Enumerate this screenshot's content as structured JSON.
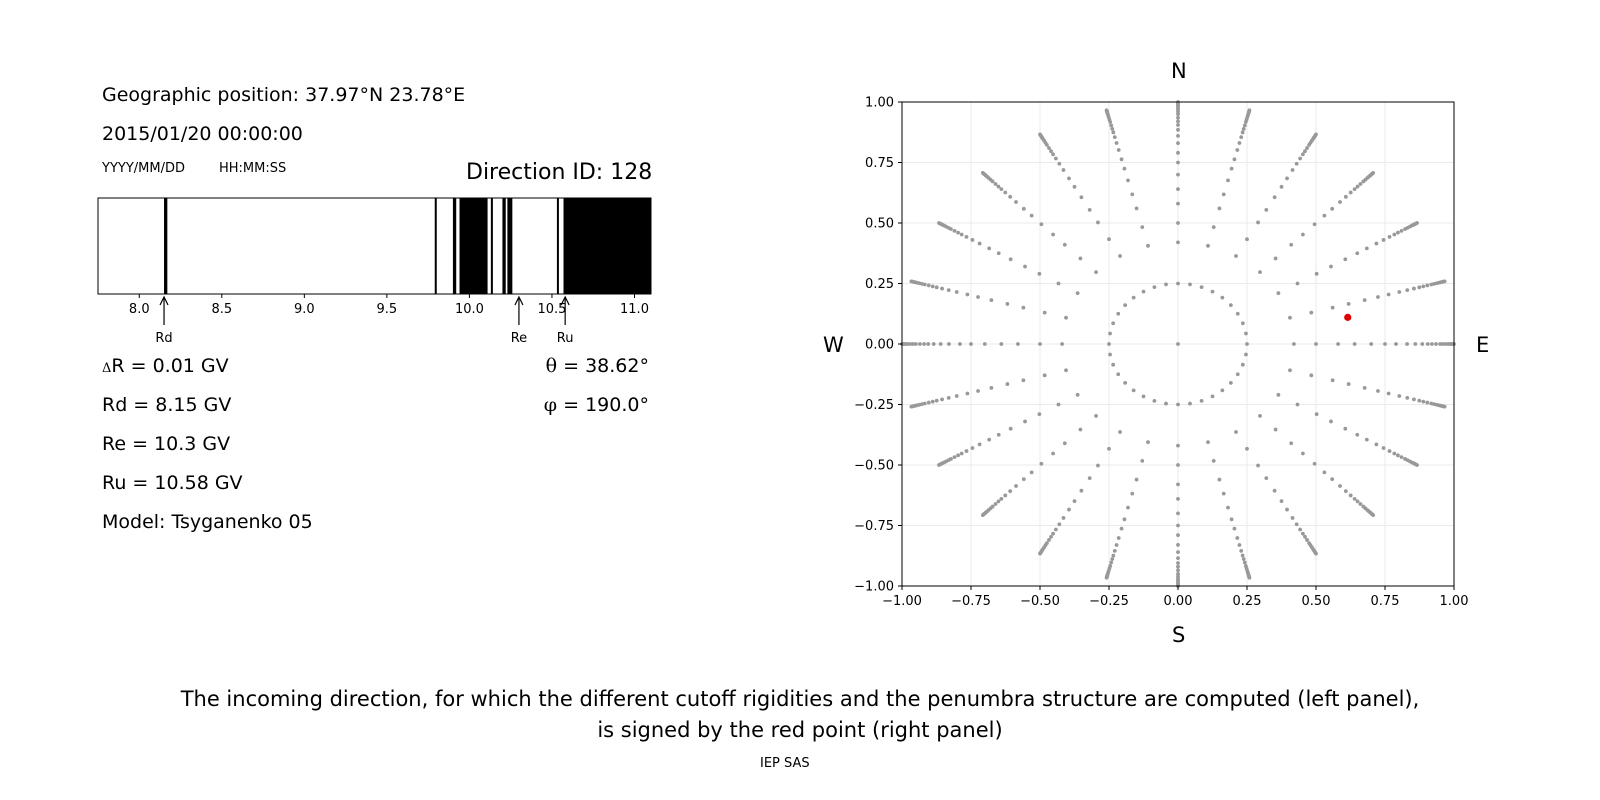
{
  "header": {
    "geo_position": "Geographic position: 37.97°N 23.78°E",
    "datetime": "2015/01/20 00:00:00",
    "date_format": "YYYY/MM/DD",
    "time_format": "HH:MM:SS",
    "direction_id": "Direction ID: 128"
  },
  "results": {
    "delta_symbol": "Δ",
    "delta_r": "R = 0.01 GV",
    "rd": "Rd = 8.15 GV",
    "re": "Re = 10.3 GV",
    "ru": "Ru = 10.58 GV",
    "model": "Model: Tsyganenko 05",
    "theta_symbol": "θ",
    "theta": " = 38.62°",
    "phi_symbol": "φ",
    "phi": " = 190.0°"
  },
  "compass": {
    "north": "N",
    "south": "S",
    "west": "W",
    "east": "E"
  },
  "caption": {
    "line1": "The incoming direction, for which the different cutoff rigidities and the penumbra structure are computed (left panel),",
    "line2": "is signed by the red point (right panel)"
  },
  "footer": "IEP SAS",
  "chart_data": [
    {
      "type": "bar",
      "name": "penumbra",
      "xlim": [
        7.75,
        11.1
      ],
      "xticks": [
        8.0,
        8.5,
        9.0,
        9.5,
        10.0,
        10.5,
        11.0
      ],
      "forbidden_bands": [
        [
          8.15,
          8.17
        ],
        [
          9.79,
          9.8
        ],
        [
          9.9,
          9.92
        ],
        [
          9.94,
          10.11
        ],
        [
          10.13,
          10.14
        ],
        [
          10.2,
          10.22
        ],
        [
          10.23,
          10.26
        ],
        [
          10.53,
          10.54
        ],
        [
          10.57,
          11.1
        ]
      ],
      "markers": [
        {
          "label": "Rd",
          "x": 8.15
        },
        {
          "label": "Re",
          "x": 10.3
        },
        {
          "label": "Ru",
          "x": 10.58
        }
      ],
      "color_color": "#000000"
    },
    {
      "type": "scatter",
      "name": "directions",
      "xlim": [
        -1.0,
        1.0
      ],
      "ylim": [
        -1.0,
        1.0
      ],
      "xticks": [
        -1.0,
        -0.75,
        -0.5,
        -0.25,
        0.0,
        0.25,
        0.5,
        0.75,
        1.0
      ],
      "yticks": [
        -1.0,
        -0.75,
        -0.5,
        -0.25,
        0.0,
        0.25,
        0.5,
        0.75,
        1.0
      ],
      "grid": true,
      "azimuths_deg": [
        0,
        15,
        30,
        45,
        60,
        75,
        90,
        105,
        120,
        135,
        150,
        165,
        180,
        195,
        210,
        225,
        240,
        255,
        270,
        285,
        300,
        315,
        330,
        345
      ],
      "ring_radii": [
        0.0,
        0.25,
        0.42,
        0.5,
        0.58,
        0.64,
        0.7,
        0.75,
        0.79,
        0.83,
        0.86,
        0.885,
        0.905,
        0.92,
        0.935,
        0.95,
        0.96,
        0.97,
        0.978,
        0.985,
        0.99,
        0.995,
        1.0
      ],
      "inner_ring_count": 36,
      "points_color": "#999999",
      "selected": {
        "x": 0.615,
        "y": 0.11
      },
      "selected_color": "#e00000"
    }
  ]
}
